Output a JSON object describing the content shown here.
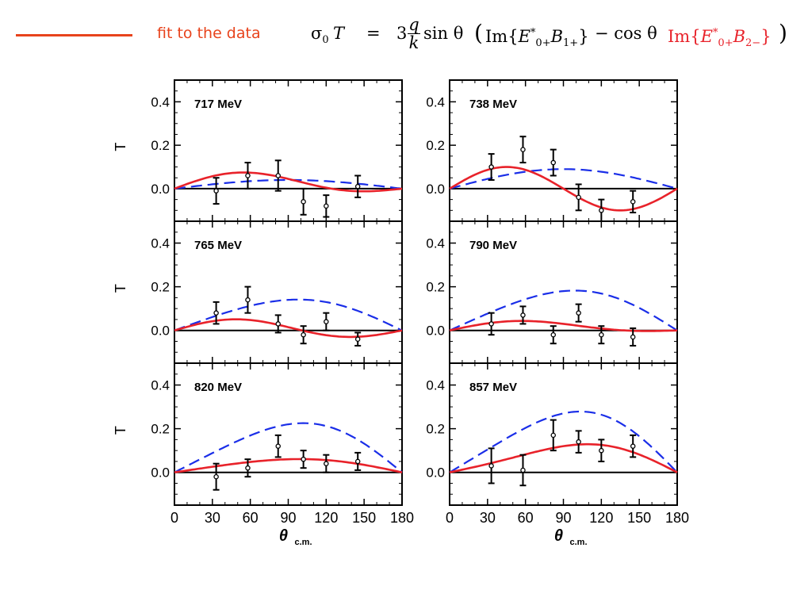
{
  "legend": {
    "label": "fit to the data",
    "line_color": "#e8431c"
  },
  "formula": {
    "lhs_sigma": "σ",
    "lhs_sub": "0",
    "lhs_T": "T",
    "equals": "=",
    "coef": "3",
    "frac_num": "q",
    "frac_den": "k",
    "sin": "sin θ",
    "open": "(",
    "im1": "Im{",
    "e1": "E",
    "e1_sup": "*",
    "e1_sub": "0+",
    "b1": "B",
    "b1_sub": "1+",
    "close1": "}",
    "minus": "− cos θ",
    "im2": "Im{",
    "e2": "E",
    "e2_sup": "*",
    "e2_sub": "0+",
    "b2": "B",
    "b2_sub": "2−",
    "close2": "}",
    "close": ")",
    "red_color": "#e8222a"
  },
  "chart_data": {
    "type": "scatter",
    "xlabel": "θ",
    "xlabel_sub": "c.m.",
    "ylabel": "T",
    "xlim": [
      0,
      180
    ],
    "ylim": [
      -0.15,
      0.5
    ],
    "xticks": [
      0,
      30,
      60,
      90,
      120,
      150,
      180
    ],
    "yticks": [
      "0.0",
      "0.2",
      "0.4"
    ],
    "yticks_values": [
      0.0,
      0.2,
      0.4
    ],
    "colors": {
      "fit": "#e8222a",
      "model": "#1a2ee8",
      "data": "#000000"
    },
    "panels": [
      {
        "label": "717 MeV",
        "data": [
          {
            "x": 33,
            "y": -0.01,
            "err": 0.06
          },
          {
            "x": 58,
            "y": 0.06,
            "err": 0.06
          },
          {
            "x": 82,
            "y": 0.06,
            "err": 0.07
          },
          {
            "x": 102,
            "y": -0.06,
            "err": 0.06
          },
          {
            "x": 120,
            "y": -0.08,
            "err": 0.05
          },
          {
            "x": 145,
            "y": 0.01,
            "err": 0.05
          }
        ],
        "fit": {
          "a": 0.045,
          "b": 0.08
        },
        "model": {
          "a": 0.04,
          "b": 0.0
        }
      },
      {
        "label": "738 MeV",
        "data": [
          {
            "x": 33,
            "y": 0.1,
            "err": 0.06
          },
          {
            "x": 58,
            "y": 0.18,
            "err": 0.06
          },
          {
            "x": 82,
            "y": 0.12,
            "err": 0.06
          },
          {
            "x": 102,
            "y": -0.04,
            "err": 0.06
          },
          {
            "x": 120,
            "y": -0.1,
            "err": 0.05
          },
          {
            "x": 145,
            "y": -0.06,
            "err": 0.05
          }
        ],
        "fit": {
          "a": 0.0,
          "b": 0.2
        },
        "model": {
          "a": 0.09,
          "b": 0.0
        }
      },
      {
        "label": "765 MeV",
        "data": [
          {
            "x": 33,
            "y": 0.08,
            "err": 0.05
          },
          {
            "x": 58,
            "y": 0.14,
            "err": 0.06
          },
          {
            "x": 82,
            "y": 0.03,
            "err": 0.04
          },
          {
            "x": 102,
            "y": -0.02,
            "err": 0.04
          },
          {
            "x": 120,
            "y": 0.04,
            "err": 0.04
          },
          {
            "x": 145,
            "y": -0.04,
            "err": 0.03
          }
        ],
        "fit": {
          "a": 0.015,
          "b": 0.08
        },
        "model": {
          "a": 0.14,
          "b": -0.02
        }
      },
      {
        "label": "790 MeV",
        "data": [
          {
            "x": 33,
            "y": 0.03,
            "err": 0.05
          },
          {
            "x": 58,
            "y": 0.07,
            "err": 0.04
          },
          {
            "x": 82,
            "y": -0.02,
            "err": 0.04
          },
          {
            "x": 102,
            "y": 0.08,
            "err": 0.04
          },
          {
            "x": 120,
            "y": -0.02,
            "err": 0.04
          },
          {
            "x": 145,
            "y": -0.03,
            "err": 0.04
          }
        ],
        "fit": {
          "a": 0.03,
          "b": 0.04
        },
        "model": {
          "a": 0.18,
          "b": -0.03
        }
      },
      {
        "label": "820 MeV",
        "data": [
          {
            "x": 33,
            "y": -0.02,
            "err": 0.06
          },
          {
            "x": 58,
            "y": 0.02,
            "err": 0.04
          },
          {
            "x": 82,
            "y": 0.12,
            "err": 0.05
          },
          {
            "x": 102,
            "y": 0.06,
            "err": 0.04
          },
          {
            "x": 120,
            "y": 0.04,
            "err": 0.04
          },
          {
            "x": 145,
            "y": 0.05,
            "err": 0.04
          }
        ],
        "fit": {
          "a": 0.06,
          "b": -0.01
        },
        "model": {
          "a": 0.22,
          "b": -0.05
        }
      },
      {
        "label": "857 MeV",
        "data": [
          {
            "x": 33,
            "y": 0.03,
            "err": 0.08
          },
          {
            "x": 58,
            "y": 0.01,
            "err": 0.07
          },
          {
            "x": 82,
            "y": 0.17,
            "err": 0.07
          },
          {
            "x": 102,
            "y": 0.14,
            "err": 0.05
          },
          {
            "x": 120,
            "y": 0.1,
            "err": 0.05
          },
          {
            "x": 145,
            "y": 0.12,
            "err": 0.05
          }
        ],
        "fit": {
          "a": 0.12,
          "b": -0.05
        },
        "model": {
          "a": 0.27,
          "b": -0.07
        }
      }
    ]
  }
}
